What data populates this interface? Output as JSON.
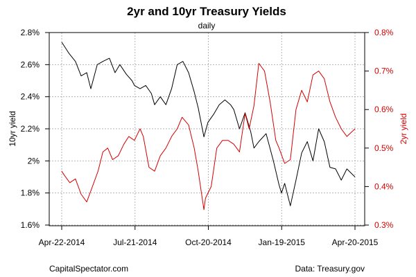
{
  "chart_data": {
    "type": "line",
    "title": "2yr and 10yr Treasury Yields",
    "subtitle": "daily",
    "ylabel": "10yr yield",
    "ylabel_right": "2yr yield",
    "x_ticks": [
      "Apr-22-2014",
      "Jul-21-2014",
      "Oct-20-2014",
      "Jan-19-2015",
      "Apr-20-2015"
    ],
    "x_range": [
      "2014-04-22",
      "2015-04-20"
    ],
    "y_left": {
      "ticks": [
        "1.6%",
        "1.8%",
        "2%",
        "2.2%",
        "2.4%",
        "2.6%",
        "2.8%"
      ],
      "range": [
        1.6,
        2.8
      ]
    },
    "y_right": {
      "ticks": [
        "0.3%",
        "0.4%",
        "0.5%",
        "0.6%",
        "0.7%",
        "0.8%"
      ],
      "range": [
        0.3,
        0.8
      ]
    },
    "grid": true,
    "colors": {
      "ten_year": "#000000",
      "two_year": "#d40000"
    },
    "series": [
      {
        "axis": "left",
        "color": "#000000",
        "x": [
          "2014-04-22",
          "2014-05-01",
          "2014-05-09",
          "2014-05-16",
          "2014-05-23",
          "2014-05-28",
          "2014-06-05",
          "2014-06-12",
          "2014-06-20",
          "2014-06-27",
          "2014-07-03",
          "2014-07-11",
          "2014-07-18",
          "2014-07-21",
          "2014-07-28",
          "2014-08-04",
          "2014-08-11",
          "2014-08-15",
          "2014-08-22",
          "2014-08-29",
          "2014-09-05",
          "2014-09-12",
          "2014-09-19",
          "2014-09-26",
          "2014-10-03",
          "2014-10-08",
          "2014-10-15",
          "2014-10-20",
          "2014-10-27",
          "2014-11-03",
          "2014-11-10",
          "2014-11-17",
          "2014-11-21",
          "2014-11-28",
          "2014-12-05",
          "2014-12-12",
          "2014-12-16",
          "2014-12-22",
          "2014-12-31",
          "2015-01-09",
          "2015-01-16",
          "2015-01-19",
          "2015-01-23",
          "2015-01-30",
          "2015-02-06",
          "2015-02-13",
          "2015-02-20",
          "2015-02-27",
          "2015-03-06",
          "2015-03-13",
          "2015-03-20",
          "2015-03-27",
          "2015-04-03",
          "2015-04-10",
          "2015-04-20"
        ],
        "values": [
          2.74,
          2.67,
          2.62,
          2.53,
          2.55,
          2.45,
          2.6,
          2.62,
          2.64,
          2.55,
          2.6,
          2.54,
          2.5,
          2.47,
          2.45,
          2.47,
          2.42,
          2.35,
          2.4,
          2.35,
          2.45,
          2.6,
          2.62,
          2.55,
          2.43,
          2.33,
          2.15,
          2.24,
          2.29,
          2.35,
          2.38,
          2.35,
          2.32,
          2.2,
          2.3,
          2.18,
          2.08,
          2.12,
          2.17,
          2.0,
          1.85,
          1.8,
          1.86,
          1.72,
          1.88,
          2.05,
          2.12,
          2.0,
          2.2,
          2.12,
          1.96,
          1.95,
          1.88,
          1.95,
          1.9
        ]
      },
      {
        "axis": "right",
        "color": "#d40000",
        "x": [
          "2014-04-22",
          "2014-04-25",
          "2014-05-02",
          "2014-05-09",
          "2014-05-16",
          "2014-05-23",
          "2014-05-30",
          "2014-06-06",
          "2014-06-12",
          "2014-06-18",
          "2014-06-24",
          "2014-07-01",
          "2014-07-08",
          "2014-07-14",
          "2014-07-21",
          "2014-07-28",
          "2014-08-01",
          "2014-08-08",
          "2014-08-15",
          "2014-08-22",
          "2014-08-29",
          "2014-09-05",
          "2014-09-12",
          "2014-09-18",
          "2014-09-26",
          "2014-10-03",
          "2014-10-08",
          "2014-10-15",
          "2014-10-17",
          "2014-10-24",
          "2014-10-31",
          "2014-11-07",
          "2014-11-14",
          "2014-11-21",
          "2014-11-28",
          "2014-12-05",
          "2014-12-10",
          "2014-12-16",
          "2014-12-22",
          "2014-12-29",
          "2015-01-05",
          "2015-01-12",
          "2015-01-16",
          "2015-01-23",
          "2015-01-30",
          "2015-02-06",
          "2015-02-13",
          "2015-02-20",
          "2015-02-27",
          "2015-03-06",
          "2015-03-13",
          "2015-03-20",
          "2015-03-27",
          "2015-04-03",
          "2015-04-10",
          "2015-04-20"
        ],
        "values": [
          0.44,
          0.43,
          0.41,
          0.42,
          0.38,
          0.36,
          0.4,
          0.44,
          0.49,
          0.5,
          0.47,
          0.48,
          0.51,
          0.53,
          0.52,
          0.55,
          0.53,
          0.45,
          0.44,
          0.48,
          0.5,
          0.53,
          0.55,
          0.58,
          0.56,
          0.5,
          0.44,
          0.34,
          0.37,
          0.4,
          0.5,
          0.52,
          0.52,
          0.51,
          0.49,
          0.59,
          0.55,
          0.61,
          0.72,
          0.7,
          0.62,
          0.52,
          0.5,
          0.46,
          0.47,
          0.6,
          0.65,
          0.62,
          0.69,
          0.7,
          0.68,
          0.62,
          0.58,
          0.55,
          0.53,
          0.55
        ]
      }
    ]
  },
  "footer": {
    "left": "CapitalSpectator.com",
    "right": "Data: Treasury.gov"
  }
}
